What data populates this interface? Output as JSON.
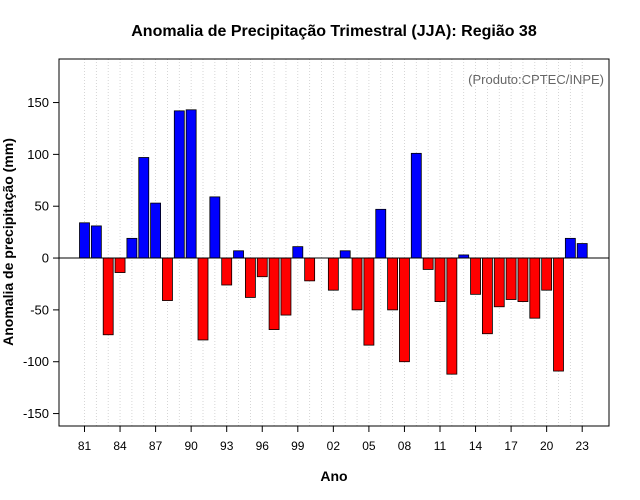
{
  "chart_data": {
    "type": "bar",
    "title": "Anomalia de Precipitação Trimestral (JJA): Região 38",
    "xlabel": "Ano",
    "ylabel": "Anomalia de precipitação (mm)",
    "annotation": "(Produto:CPTEC/INPE)",
    "ylim": [
      -162,
      192
    ],
    "yticks": [
      -150,
      -100,
      -50,
      0,
      50,
      100,
      150
    ],
    "xtick_labels": [
      "81",
      "84",
      "87",
      "90",
      "93",
      "96",
      "99",
      "02",
      "05",
      "08",
      "11",
      "14",
      "17",
      "20",
      "23"
    ],
    "grid": true,
    "positive_color": "#0000ff",
    "negative_color": "#ff0000",
    "categories": [
      "1981",
      "1982",
      "1983",
      "1984",
      "1985",
      "1986",
      "1987",
      "1988",
      "1989",
      "1990",
      "1991",
      "1992",
      "1993",
      "1994",
      "1995",
      "1996",
      "1997",
      "1998",
      "1999",
      "2000",
      "2001",
      "2002",
      "2003",
      "2004",
      "2005",
      "2006",
      "2007",
      "2008",
      "2009",
      "2010",
      "2011",
      "2012",
      "2013",
      "2014",
      "2015",
      "2016",
      "2017",
      "2018",
      "2019",
      "2020",
      "2021",
      "2022",
      "2023"
    ],
    "values": [
      34,
      31,
      -74,
      -14,
      19,
      97,
      53,
      -41,
      142,
      143,
      -79,
      59,
      -26,
      7,
      -38,
      -18,
      -69,
      -55,
      11,
      -22,
      0,
      -31,
      7,
      -50,
      -84,
      47,
      -50,
      -100,
      101,
      -11,
      -42,
      -112,
      3,
      -35,
      -73,
      -47,
      -40,
      -42,
      -58,
      -31,
      -109,
      19,
      14
    ]
  }
}
